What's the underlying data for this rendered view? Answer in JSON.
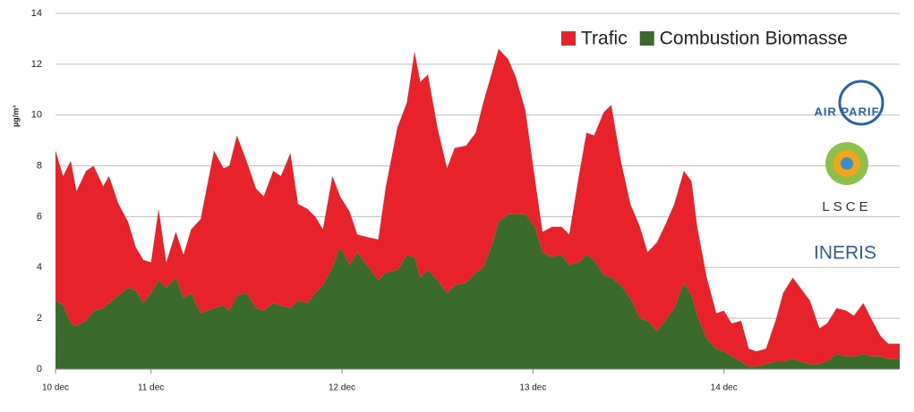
{
  "chart_data": {
    "type": "stacked-area",
    "y_label": "µg/m³",
    "x": [
      0.5,
      0.54,
      0.58,
      0.61,
      0.66,
      0.7,
      0.75,
      0.78,
      0.83,
      0.88,
      0.92,
      0.96,
      1.0,
      1.04,
      1.08,
      1.13,
      1.17,
      1.21,
      1.26,
      1.33,
      1.38,
      1.41,
      1.45,
      1.5,
      1.55,
      1.59,
      1.64,
      1.68,
      1.73,
      1.77,
      1.82,
      1.86,
      1.9,
      1.95,
      1.99,
      2.04,
      2.08,
      2.13,
      2.19,
      2.23,
      2.29,
      2.34,
      2.38,
      2.41,
      2.45,
      2.5,
      2.55,
      2.59,
      2.65,
      2.7,
      2.74,
      2.79,
      2.82,
      2.87,
      2.91,
      2.96,
      3.01,
      3.05,
      3.1,
      3.15,
      3.19,
      3.24,
      3.28,
      3.32,
      3.37,
      3.41,
      3.46,
      3.51,
      3.56,
      3.6,
      3.65,
      3.7,
      3.74,
      3.79,
      3.83,
      3.86,
      3.91,
      3.96,
      4.0,
      4.04,
      4.09,
      4.13,
      4.17,
      4.22,
      4.27,
      4.31,
      4.36,
      4.4,
      4.45,
      4.5,
      4.54,
      4.59,
      4.64,
      4.68,
      4.73,
      4.77,
      4.82,
      4.86,
      4.92
    ],
    "series": [
      {
        "name": "Trafic",
        "color": "#e8222b",
        "values": [
          5.9,
          5.1,
          6.4,
          5.3,
          5.9,
          5.7,
          4.8,
          5.0,
          3.6,
          2.6,
          1.7,
          1.7,
          1.2,
          2.8,
          1.0,
          1.8,
          1.7,
          2.5,
          3.7,
          6.2,
          5.4,
          5.7,
          6.3,
          5.2,
          4.7,
          4.5,
          5.2,
          5.1,
          6.1,
          3.8,
          3.7,
          3.0,
          2.2,
          3.6,
          2.0,
          2.1,
          0.7,
          1.1,
          1.6,
          3.4,
          5.6,
          6.0,
          8.1,
          7.7,
          7.7,
          6.0,
          4.9,
          5.4,
          5.4,
          5.5,
          6.5,
          6.8,
          6.8,
          6.1,
          5.4,
          4.1,
          1.9,
          0.8,
          1.2,
          1.1,
          1.2,
          3.4,
          4.8,
          4.9,
          6.4,
          6.8,
          4.9,
          3.7,
          3.6,
          2.7,
          3.5,
          3.8,
          4.1,
          4.4,
          4.5,
          3.5,
          2.4,
          1.4,
          1.6,
          1.3,
          1.6,
          0.7,
          0.6,
          0.6,
          1.6,
          2.7,
          3.2,
          2.9,
          2.5,
          1.4,
          1.5,
          1.8,
          1.8,
          1.6,
          2.0,
          1.5,
          0.8,
          0.6,
          0.6
        ]
      },
      {
        "name": "Combustion Biomasse",
        "color": "#3b6a2d",
        "values": [
          2.7,
          2.5,
          1.8,
          1.7,
          1.9,
          2.3,
          2.4,
          2.6,
          2.9,
          3.2,
          3.1,
          2.6,
          3.0,
          3.5,
          3.2,
          3.6,
          2.8,
          3.0,
          2.2,
          2.4,
          2.5,
          2.3,
          2.9,
          3.0,
          2.4,
          2.3,
          2.6,
          2.5,
          2.4,
          2.7,
          2.6,
          3.0,
          3.3,
          4.0,
          4.8,
          4.1,
          4.6,
          4.1,
          3.5,
          3.8,
          3.9,
          4.5,
          4.4,
          3.6,
          3.9,
          3.5,
          3.0,
          3.3,
          3.4,
          3.8,
          4.0,
          5.0,
          5.8,
          6.1,
          6.1,
          6.1,
          5.6,
          4.6,
          4.4,
          4.5,
          4.1,
          4.2,
          4.5,
          4.3,
          3.7,
          3.6,
          3.3,
          2.8,
          2.0,
          1.9,
          1.5,
          2.0,
          2.4,
          3.4,
          2.9,
          2.1,
          1.2,
          0.8,
          0.7,
          0.5,
          0.3,
          0.1,
          0.1,
          0.2,
          0.3,
          0.3,
          0.4,
          0.3,
          0.2,
          0.2,
          0.3,
          0.6,
          0.5,
          0.5,
          0.6,
          0.5,
          0.5,
          0.4,
          0.4
        ]
      }
    ],
    "xlim": [
      0.5,
      4.92
    ],
    "xticks": [
      {
        "value": 0.5,
        "label": "10 dec"
      },
      {
        "value": 1,
        "label": "11 dec"
      },
      {
        "value": 2,
        "label": "12 dec"
      },
      {
        "value": 3,
        "label": "13 dec"
      },
      {
        "value": 4,
        "label": "14 dec"
      }
    ],
    "ylim": [
      0,
      14
    ],
    "yticks": [
      0,
      2,
      4,
      6,
      8,
      10,
      12,
      14
    ],
    "grid": true,
    "legend": "top-right",
    "logos": [
      "AIR PARIF",
      "LSCE",
      "INERIS"
    ]
  }
}
